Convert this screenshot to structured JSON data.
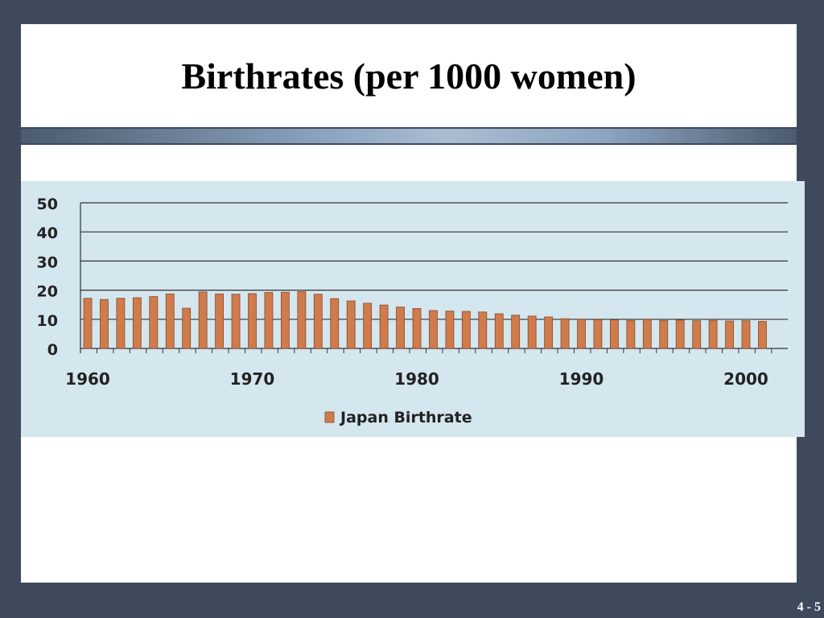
{
  "slide": {
    "title": "Birthrates (per 1000 women)",
    "page_number": "4 - 5"
  },
  "colors": {
    "background": "#3e4a5c",
    "chart_background": "#d4e6ee",
    "bar_fill": "#cf7b4c",
    "bar_stroke": "#8a4a26",
    "gridline": "#333333"
  },
  "chart_data": {
    "type": "bar",
    "title": "",
    "xlabel": "",
    "ylabel": "",
    "ylim": [
      0,
      50
    ],
    "y_ticks": [
      "0",
      "10",
      "20",
      "30",
      "40",
      "50"
    ],
    "x_tick_labels": [
      "1960",
      "1970",
      "1980",
      "1990",
      "2000"
    ],
    "grid": true,
    "legend_position": "bottom",
    "categories": [
      1960,
      1961,
      1962,
      1963,
      1964,
      1965,
      1966,
      1967,
      1968,
      1969,
      1970,
      1971,
      1972,
      1973,
      1974,
      1975,
      1976,
      1977,
      1978,
      1979,
      1980,
      1981,
      1982,
      1983,
      1984,
      1985,
      1986,
      1987,
      1988,
      1989,
      1990,
      1991,
      1992,
      1993,
      1994,
      1995,
      1996,
      1997,
      1998,
      1999,
      2000,
      2001
    ],
    "series": [
      {
        "name": "Japan Birthrate",
        "values": [
          17.2,
          16.8,
          17.2,
          17.4,
          17.8,
          18.7,
          13.8,
          19.4,
          18.7,
          18.6,
          18.8,
          19.2,
          19.3,
          19.5,
          18.6,
          17.1,
          16.3,
          15.5,
          14.9,
          14.2,
          13.7,
          13.0,
          12.8,
          12.7,
          12.5,
          11.9,
          11.4,
          11.1,
          10.8,
          10.2,
          10.0,
          9.9,
          9.8,
          9.6,
          10.0,
          9.6,
          9.7,
          9.5,
          9.6,
          9.4,
          9.5,
          9.3
        ]
      }
    ]
  }
}
